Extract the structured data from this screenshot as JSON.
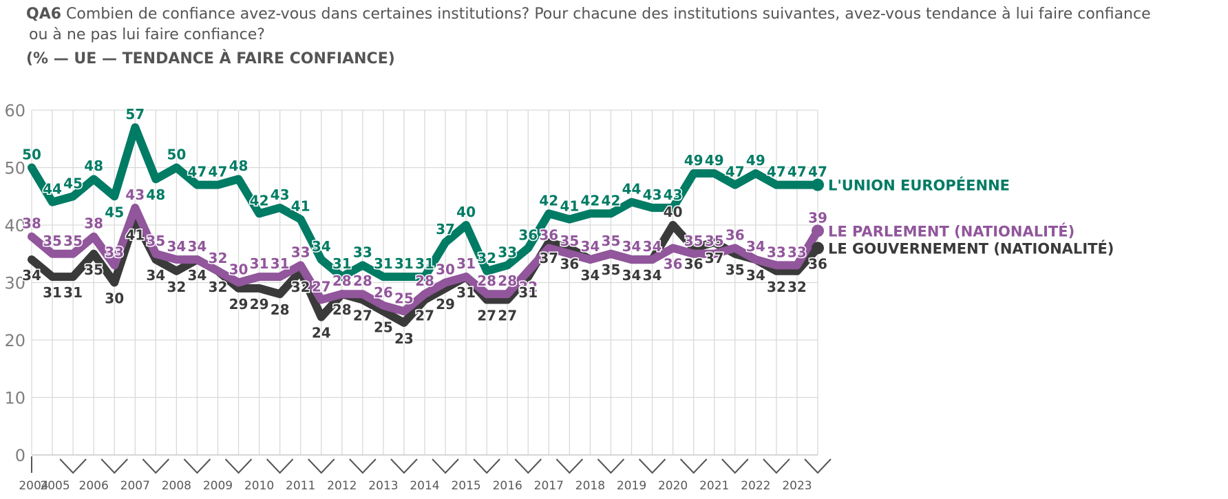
{
  "question": {
    "code": "QA6",
    "line1": "Combien de confiance avez-vous dans certaines institutions? Pour chacune des institutions suivantes, avez-vous tendance à lui faire confiance",
    "line2": "ou à ne pas lui faire confiance?",
    "subtitle": "(% — UE — TENDANCE À FAIRE CONFIANCE)"
  },
  "chart_data": {
    "type": "line",
    "title": "(% — UE — TENDANCE À FAIRE CONFIANCE)",
    "ylim": [
      0,
      60
    ],
    "yticks": [
      0,
      10,
      20,
      30,
      40,
      50,
      60
    ],
    "grid": true,
    "year_labels": [
      "2004",
      "2005",
      "2006",
      "2007",
      "2008",
      "2009",
      "2010",
      "2011",
      "2012",
      "2013",
      "2014",
      "2015",
      "2016",
      "2017",
      "2018",
      "2019",
      "2020",
      "2021",
      "2022",
      "2023"
    ],
    "year_positions": [
      0,
      1,
      3,
      5,
      7,
      9,
      11,
      13,
      15,
      17,
      19,
      21,
      23,
      25,
      27,
      29,
      31,
      33,
      35,
      37
    ],
    "series": [
      {
        "name": "L'UNION EUROPÉENNE",
        "color": "#007B64",
        "values": [
          50,
          44,
          45,
          48,
          45,
          57,
          48,
          50,
          47,
          47,
          48,
          42,
          43,
          41,
          34,
          31,
          33,
          31,
          31,
          31,
          37,
          40,
          32,
          33,
          36,
          42,
          41,
          42,
          42,
          44,
          43,
          43,
          49,
          49,
          47,
          49,
          47,
          47,
          47
        ],
        "label_pos": [
          "t",
          "t",
          "t",
          "t",
          "b",
          "t",
          "b",
          "t",
          "t",
          "t",
          "t",
          "t",
          "t",
          "t",
          "t",
          "t",
          "t",
          "t",
          "t",
          "t",
          "t",
          "t",
          "t",
          "t",
          "t",
          "t",
          "t",
          "t",
          "t",
          "t",
          "t",
          "t",
          "t",
          "t",
          "t",
          "t",
          "t",
          "t",
          "t"
        ]
      },
      {
        "name": "LE PARLEMENT (NATIONALITÉ)",
        "color": "#91569B",
        "values": [
          38,
          35,
          35,
          38,
          33,
          43,
          35,
          34,
          34,
          32,
          30,
          31,
          31,
          33,
          27,
          28,
          28,
          26,
          25,
          28,
          30,
          31,
          28,
          28,
          32,
          36,
          35,
          34,
          35,
          34,
          34,
          36,
          35,
          35,
          36,
          34,
          33,
          33,
          39
        ],
        "label_pos": [
          "t",
          "t",
          "t",
          "t",
          "t",
          "t",
          "t",
          "t",
          "t",
          "t",
          "t",
          "t",
          "t",
          "t",
          "t",
          "t",
          "t",
          "t",
          "t",
          "t",
          "t",
          "t",
          "t",
          "t",
          "b",
          "t",
          "t",
          "t",
          "t",
          "t",
          "t",
          "b",
          "t",
          "t",
          "t",
          "t",
          "t",
          "t",
          "t"
        ]
      },
      {
        "name": "LE GOUVERNEMENT (NATIONALITÉ)",
        "color": "#3A3A3A",
        "values": [
          34,
          31,
          31,
          35,
          30,
          41,
          34,
          32,
          34,
          32,
          29,
          29,
          28,
          32,
          24,
          28,
          27,
          25,
          23,
          27,
          29,
          31,
          27,
          27,
          31,
          37,
          36,
          34,
          35,
          34,
          34,
          40,
          36,
          37,
          35,
          34,
          32,
          32,
          36
        ],
        "label_pos": [
          "b",
          "b",
          "b",
          "b",
          "b",
          "b",
          "b",
          "b",
          "b",
          "b",
          "b",
          "b",
          "b",
          "b",
          "b",
          "b",
          "b",
          "b",
          "b",
          "b",
          "b",
          "b",
          "b",
          "b",
          "b",
          "b",
          "b",
          "b",
          "b",
          "b",
          "b",
          "t",
          "b",
          "b",
          "b",
          "b",
          "b",
          "b",
          "b"
        ]
      }
    ]
  }
}
